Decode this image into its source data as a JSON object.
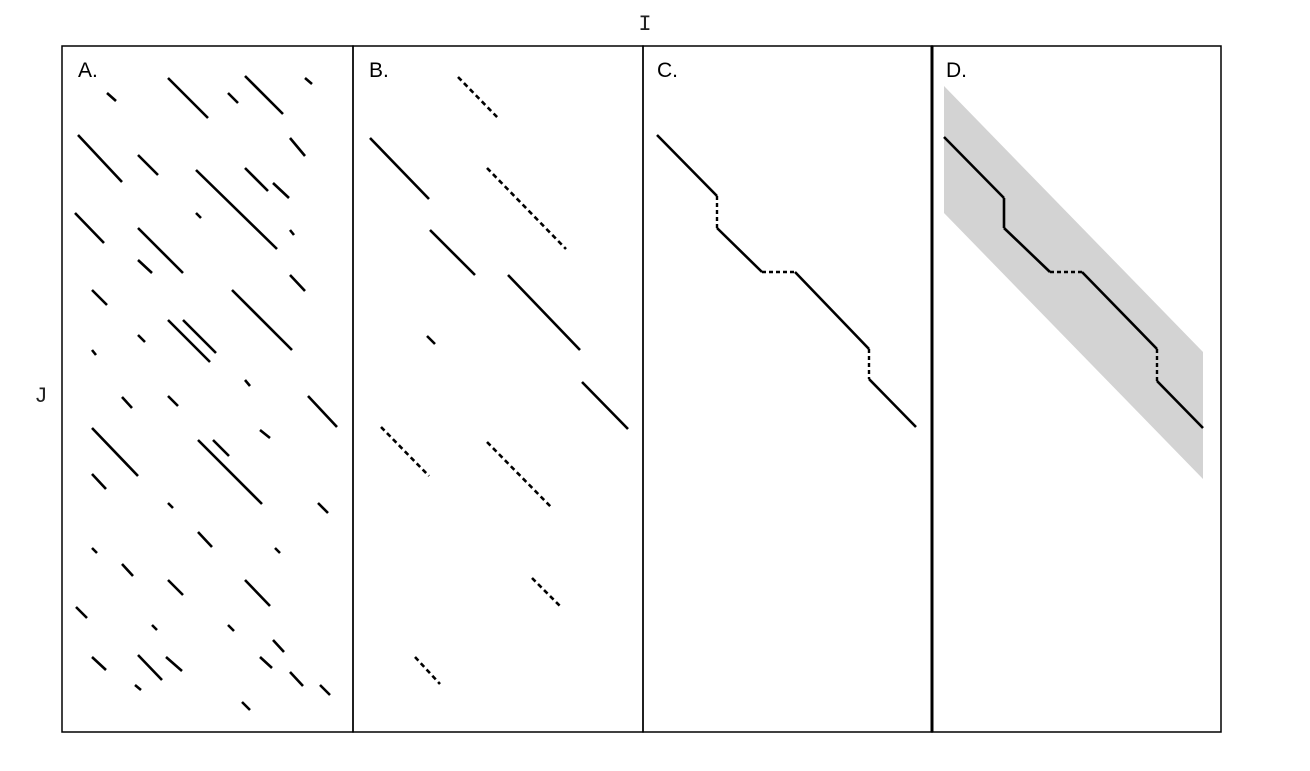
{
  "axes": {
    "x_label": "I",
    "y_label": "J"
  },
  "panels": [
    {
      "id": "A",
      "label": "A."
    },
    {
      "id": "B",
      "label": "B."
    },
    {
      "id": "C",
      "label": "C."
    },
    {
      "id": "D",
      "label": "D."
    }
  ],
  "colors": {
    "line": "#000000",
    "band": "#d3d3d3",
    "frame": "#000000"
  }
}
